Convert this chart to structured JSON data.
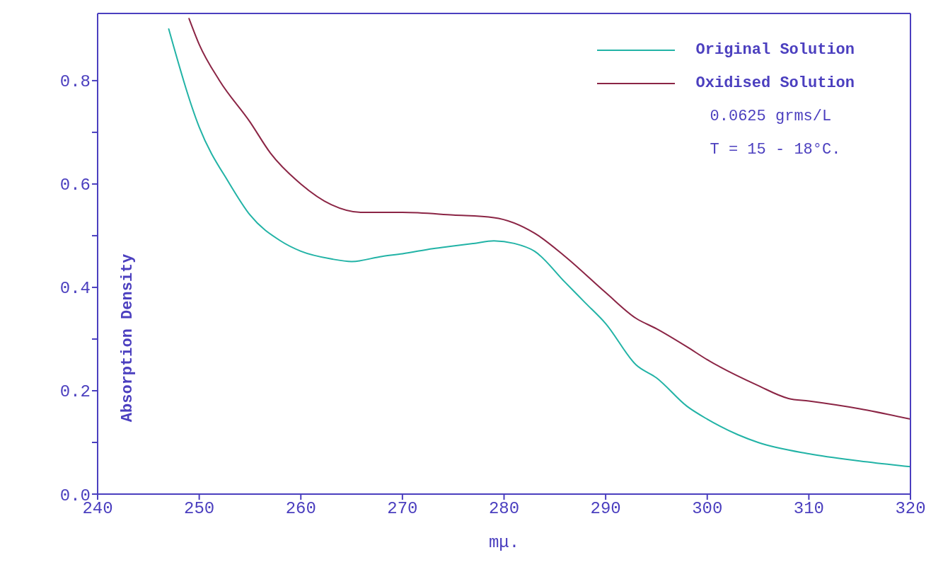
{
  "chart_data": {
    "type": "line",
    "xlabel": "mμ.",
    "ylabel": "Absorption Density",
    "xlim": [
      240,
      320
    ],
    "xticks": [
      240,
      250,
      260,
      270,
      280,
      290,
      300,
      310,
      320
    ],
    "ylim": [
      0,
      0.93
    ],
    "yticks": [
      {
        "value": 0,
        "label": "0.0"
      },
      {
        "value": 0.1,
        "label": null
      },
      {
        "value": 0.2,
        "label": "0.2"
      },
      {
        "value": 0.3,
        "label": null
      },
      {
        "value": 0.4,
        "label": "0.4"
      },
      {
        "value": 0.5,
        "label": null
      },
      {
        "value": 0.6,
        "label": "0.6"
      },
      {
        "value": 0.7,
        "label": null
      },
      {
        "value": 0.8,
        "label": "0.8"
      }
    ],
    "grid": false,
    "legend": "top right",
    "marker": "none",
    "line_style": "solid",
    "annotations": [
      "0.0625 grms/L",
      "T = 15 - 18°C."
    ],
    "series": [
      {
        "name": "Original Solution",
        "color": "#22b3a6",
        "x": [
          247,
          250,
          253,
          255,
          258,
          260,
          263,
          265,
          268,
          270,
          273,
          275,
          277,
          279,
          281,
          283,
          286,
          288,
          290,
          293,
          295,
          298,
          300,
          303,
          305,
          310,
          315,
          320
        ],
        "values": [
          0.9,
          0.71,
          0.6,
          0.54,
          0.49,
          0.47,
          0.455,
          0.45,
          0.46,
          0.465,
          0.475,
          0.48,
          0.485,
          0.49,
          0.485,
          0.47,
          0.41,
          0.37,
          0.33,
          0.25,
          0.225,
          0.17,
          0.145,
          0.115,
          0.1,
          0.078,
          0.064,
          0.053
        ]
      },
      {
        "name": "Oxidised Solution",
        "color": "#8b2545",
        "x": [
          249,
          250,
          252,
          255,
          257,
          260,
          263,
          266,
          270,
          275,
          279,
          283,
          286,
          290,
          293,
          295,
          298,
          300,
          305,
          308,
          310,
          315,
          320
        ],
        "values": [
          0.92,
          0.87,
          0.8,
          0.72,
          0.66,
          0.6,
          0.56,
          0.545,
          0.545,
          0.54,
          0.535,
          0.505,
          0.46,
          0.39,
          0.34,
          0.32,
          0.285,
          0.26,
          0.21,
          0.185,
          0.18,
          0.165,
          0.145
        ]
      }
    ]
  }
}
